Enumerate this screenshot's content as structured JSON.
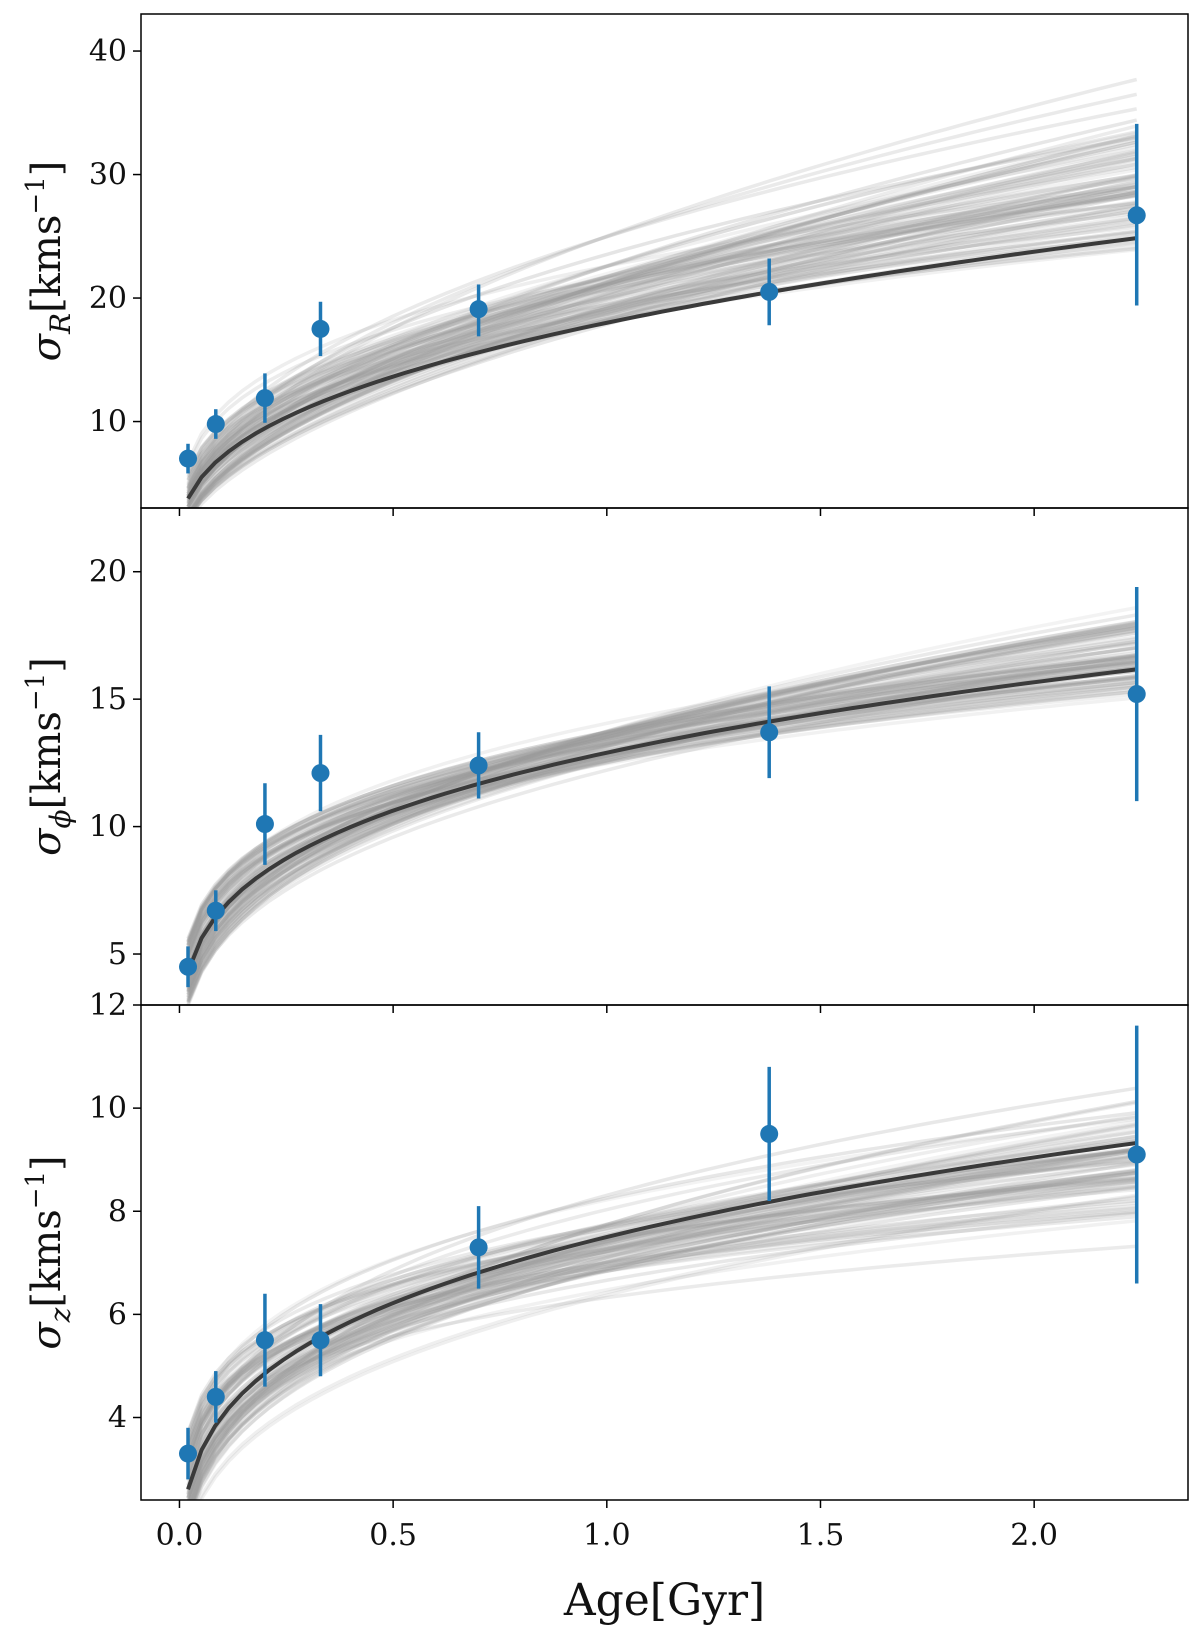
{
  "chart_data": [
    {
      "type": "scatter",
      "title": "",
      "ylabel": {
        "symbol": "σ",
        "subscript": "R",
        "unit": "[kms",
        "exp": "−1",
        "close": "]"
      },
      "xlim": [
        -0.09,
        2.36
      ],
      "ylim": [
        3,
        43
      ],
      "yticks": [
        10,
        20,
        30,
        40
      ],
      "x": [
        0.02,
        0.085,
        0.2,
        0.33,
        0.7,
        1.38,
        2.24
      ],
      "y": [
        7.0,
        9.8,
        11.9,
        17.5,
        19.1,
        20.5,
        26.7
      ],
      "yerr_low": [
        1.2,
        1.2,
        2.0,
        2.2,
        2.2,
        2.7,
        7.3
      ],
      "yerr_high": [
        1.2,
        1.2,
        2.0,
        2.2,
        2.0,
        2.7,
        7.4
      ],
      "fit": {
        "a": 18.0,
        "b": 0.4
      },
      "samples": {
        "a_range": [
          15.0,
          26.0
        ],
        "b_range": [
          0.3,
          0.58
        ],
        "count": 90
      }
    },
    {
      "type": "scatter",
      "title": "",
      "ylabel": {
        "symbol": "σ",
        "subscript": "ϕ",
        "unit": "[kms",
        "exp": "−1",
        "close": "]"
      },
      "xlim": [
        -0.09,
        2.36
      ],
      "ylim": [
        3,
        22.5
      ],
      "yticks": [
        5,
        10,
        15,
        20
      ],
      "x": [
        0.02,
        0.085,
        0.2,
        0.33,
        0.7,
        1.38,
        2.24
      ],
      "y": [
        4.5,
        6.7,
        10.1,
        12.1,
        12.4,
        13.7,
        15.2
      ],
      "yerr_low": [
        0.8,
        0.8,
        1.6,
        1.5,
        1.3,
        1.8,
        4.2
      ],
      "yerr_high": [
        0.8,
        0.8,
        1.6,
        1.5,
        1.3,
        1.8,
        4.2
      ],
      "fit": {
        "a": 12.9,
        "b": 0.28
      },
      "samples": {
        "a_range": [
          11.8,
          14.6
        ],
        "b_range": [
          0.22,
          0.38
        ],
        "count": 90
      }
    },
    {
      "type": "scatter",
      "title": "",
      "ylabel": {
        "symbol": "σ",
        "subscript": "z",
        "unit": "[kms",
        "exp": "−1",
        "close": "]"
      },
      "xlabel": "Age[Gyr]",
      "xlim": [
        -0.09,
        2.36
      ],
      "ylim": [
        2.4,
        12
      ],
      "yticks": [
        4,
        6,
        8,
        10,
        12
      ],
      "xticks": [
        0.0,
        0.5,
        1.0,
        1.5,
        2.0
      ],
      "xtick_labels": [
        "0.0",
        "0.5",
        "1.0",
        "1.5",
        "2.0"
      ],
      "x": [
        0.02,
        0.085,
        0.2,
        0.33,
        0.7,
        1.38,
        2.24
      ],
      "y": [
        3.3,
        4.4,
        5.5,
        5.5,
        7.3,
        9.5,
        9.1
      ],
      "yerr_low": [
        0.5,
        0.5,
        0.9,
        0.7,
        0.8,
        1.3,
        2.5
      ],
      "yerr_high": [
        0.5,
        0.5,
        0.9,
        0.7,
        0.8,
        1.3,
        2.5
      ],
      "fit": {
        "a": 7.5,
        "b": 0.27
      },
      "samples": {
        "a_range": [
          6.3,
          8.4
        ],
        "b_range": [
          0.17,
          0.34
        ],
        "count": 90
      }
    }
  ],
  "colors": {
    "points": "#1f77b4",
    "fit_line": "#3a3a3a",
    "sample_lines": "#9a9a9a",
    "axes": "#000000"
  }
}
